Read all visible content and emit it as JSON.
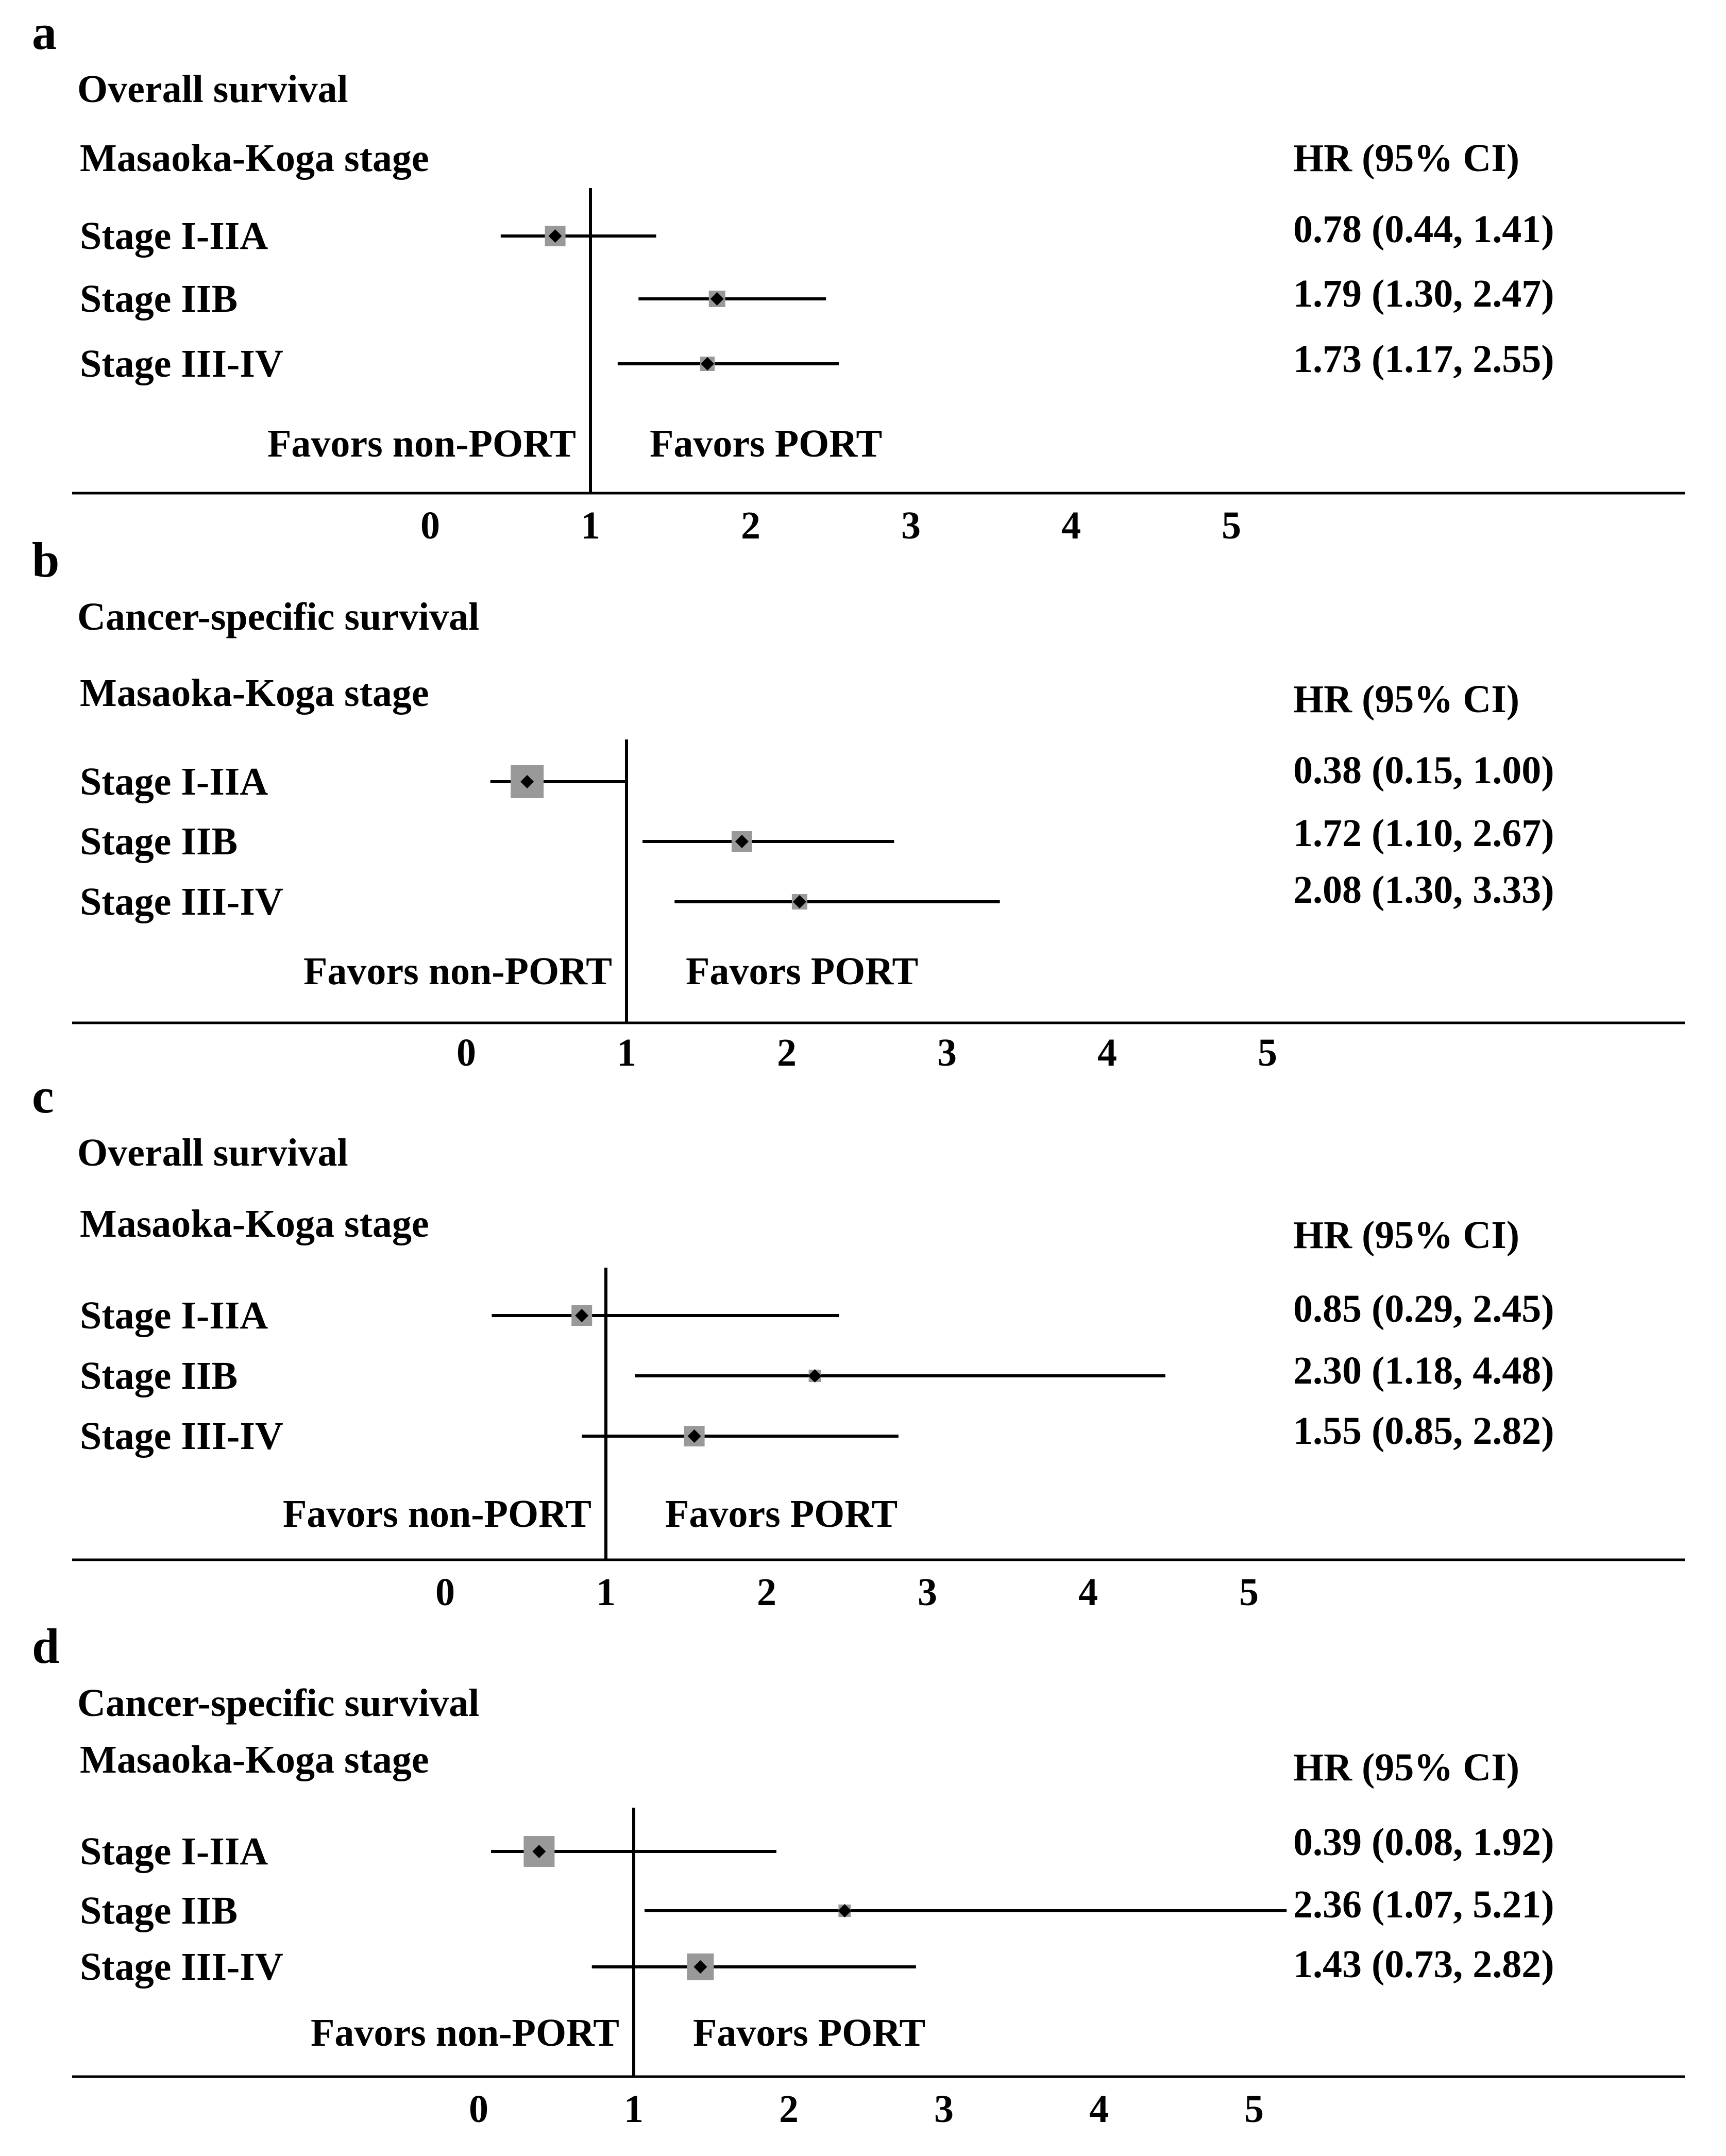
{
  "chart_data": [
    {
      "type": "forest",
      "panel_label": "a",
      "title": "Overall survival",
      "group_header": "Masaoka-Koga stage",
      "hr_header": "HR (95% CI)",
      "favors_left": "Favors non-PORT",
      "favors_right": "Favors PORT",
      "reference_line": 1,
      "xlim": [
        0,
        5
      ],
      "ticks": [
        "0",
        "1",
        "2",
        "3",
        "4",
        "5"
      ],
      "rows": [
        {
          "label": "Stage I-IIA",
          "hr": 0.78,
          "lower": 0.44,
          "upper": 1.41,
          "weight": 1.0,
          "text": "0.78 (0.44, 1.41)"
        },
        {
          "label": "Stage IIB",
          "hr": 1.79,
          "lower": 1.3,
          "upper": 2.47,
          "weight": 0.8,
          "text": "1.79 (1.30, 2.47)"
        },
        {
          "label": "Stage III-IV",
          "hr": 1.73,
          "lower": 1.17,
          "upper": 2.55,
          "weight": 0.7,
          "text": "1.73 (1.17, 2.55)"
        }
      ]
    },
    {
      "type": "forest",
      "panel_label": "b",
      "title": "Cancer-specific survival",
      "group_header": "Masaoka-Koga stage",
      "hr_header": "HR (95% CI)",
      "favors_left": "Favors non-PORT",
      "favors_right": "Favors PORT",
      "reference_line": 1,
      "xlim": [
        0,
        5
      ],
      "ticks": [
        "0",
        "1",
        "2",
        "3",
        "4",
        "5"
      ],
      "rows": [
        {
          "label": "Stage I-IIA",
          "hr": 0.38,
          "lower": 0.15,
          "upper": 1.0,
          "weight": 1.6,
          "text": "0.38 (0.15, 1.00)"
        },
        {
          "label": "Stage IIB",
          "hr": 1.72,
          "lower": 1.1,
          "upper": 2.67,
          "weight": 1.0,
          "text": "1.72 (1.10, 2.67)"
        },
        {
          "label": "Stage III-IV",
          "hr": 2.08,
          "lower": 1.3,
          "upper": 3.33,
          "weight": 0.75,
          "text": "2.08 (1.30, 3.33)"
        }
      ]
    },
    {
      "type": "forest",
      "panel_label": "c",
      "title": "Overall survival",
      "group_header": "Masaoka-Koga stage",
      "hr_header": "HR (95% CI)",
      "favors_left": "Favors non-PORT",
      "favors_right": "Favors PORT",
      "reference_line": 1,
      "xlim": [
        0,
        5
      ],
      "ticks": [
        "0",
        "1",
        "2",
        "3",
        "4",
        "5"
      ],
      "rows": [
        {
          "label": "Stage I-IIA",
          "hr": 0.85,
          "lower": 0.29,
          "upper": 2.45,
          "weight": 1.0,
          "text": "0.85 (0.29, 2.45)"
        },
        {
          "label": "Stage IIB",
          "hr": 2.3,
          "lower": 1.18,
          "upper": 4.48,
          "weight": 0.6,
          "text": "2.30 (1.18, 4.48)"
        },
        {
          "label": "Stage III-IV",
          "hr": 1.55,
          "lower": 0.85,
          "upper": 2.82,
          "weight": 1.0,
          "text": "1.55 (0.85, 2.82)"
        }
      ]
    },
    {
      "type": "forest",
      "panel_label": "d",
      "title": "Cancer-specific survival",
      "group_header": "Masaoka-Koga stage",
      "hr_header": "HR (95% CI)",
      "favors_left": "Favors non-PORT",
      "favors_right": "Favors PORT",
      "reference_line": 1,
      "xlim": [
        0,
        5
      ],
      "ticks": [
        "0",
        "1",
        "2",
        "3",
        "4",
        "5"
      ],
      "rows": [
        {
          "label": "Stage I-IIA",
          "hr": 0.39,
          "lower": 0.08,
          "upper": 1.92,
          "weight": 1.5,
          "text": "0.39 (0.08, 1.92)"
        },
        {
          "label": "Stage IIB",
          "hr": 2.36,
          "lower": 1.07,
          "upper": 5.21,
          "weight": 0.6,
          "text": "2.36 (1.07, 5.21)"
        },
        {
          "label": "Stage III-IV",
          "hr": 1.43,
          "lower": 0.73,
          "upper": 2.82,
          "weight": 1.3,
          "text": "1.43 (0.73, 2.82)"
        }
      ]
    }
  ],
  "colors": {
    "text": "#000000",
    "line": "#000000",
    "box": "#999999",
    "point": "#000000"
  }
}
